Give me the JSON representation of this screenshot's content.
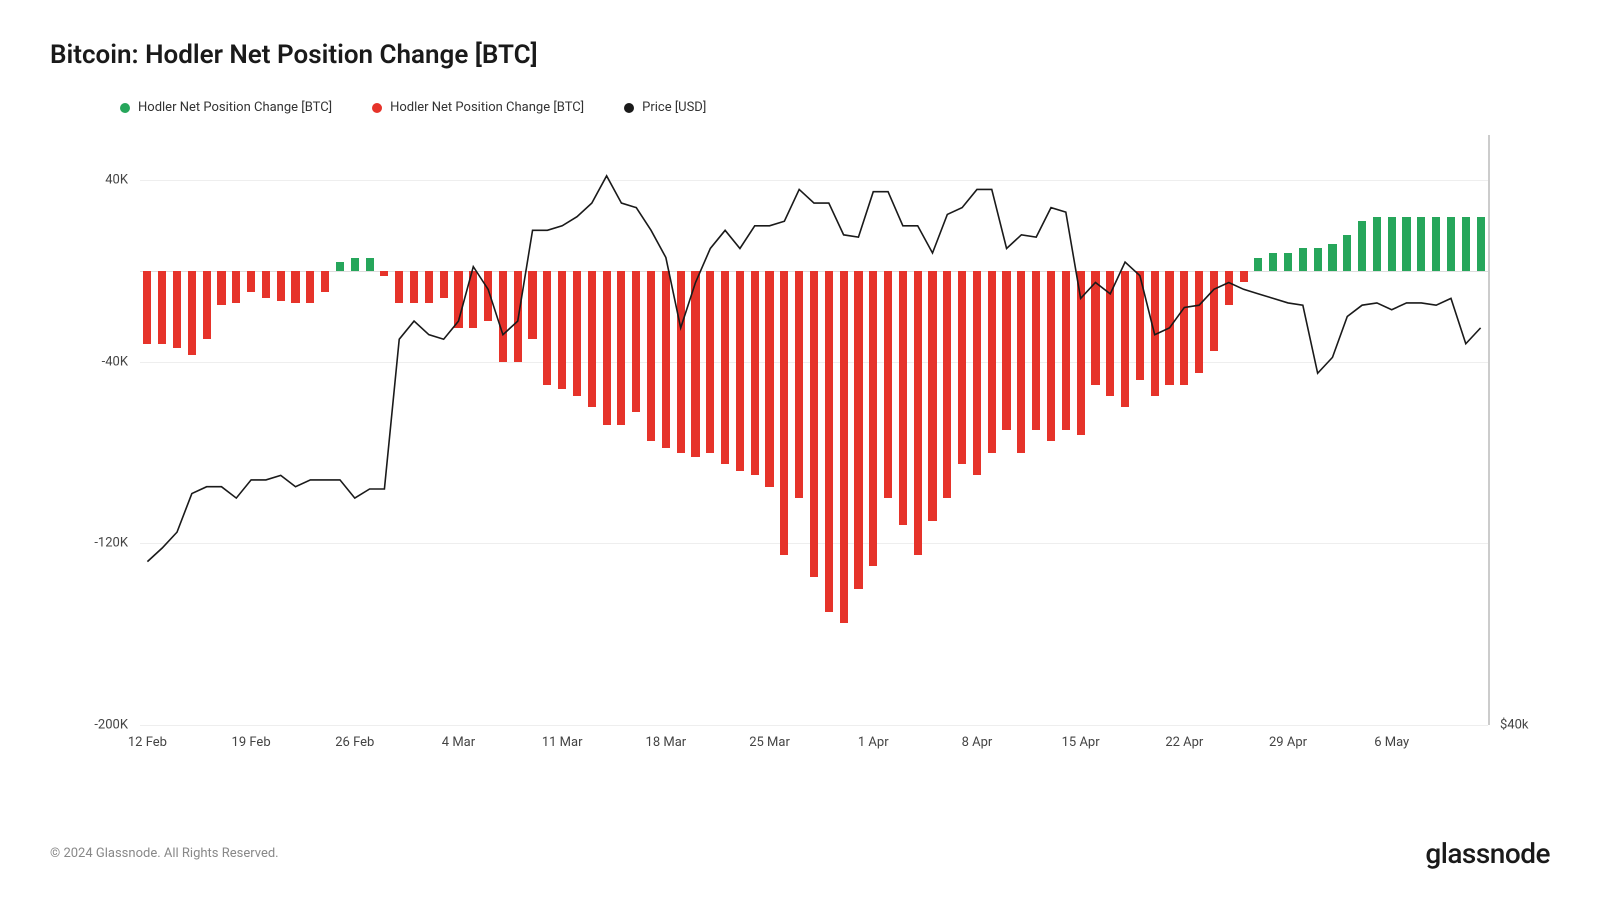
{
  "title": "Bitcoin: Hodler Net Position Change [BTC]",
  "legend": [
    {
      "label": "Hodler Net Position Change [BTC]",
      "color": "#26a65b"
    },
    {
      "label": "Hodler Net Position Change [BTC]",
      "color": "#e6332a"
    },
    {
      "label": "Price [USD]",
      "color": "#1a1a1a"
    }
  ],
  "copyright": "© 2024 Glassnode. All Rights Reserved.",
  "brand": "glassnode",
  "chart": {
    "type": "bar+line",
    "background_color": "#ffffff",
    "grid_color": "#eeeeee",
    "border_right_color": "#cccccc",
    "bar_width_ratio": 0.55,
    "y_left": {
      "min": -200000,
      "max": 60000,
      "ticks": [
        {
          "v": 40000,
          "label": "40K"
        },
        {
          "v": -40000,
          "label": "-40K"
        },
        {
          "v": -120000,
          "label": "-120K"
        },
        {
          "v": -200000,
          "label": "-200K"
        }
      ]
    },
    "y_right": {
      "ticks": [
        {
          "v": -200000,
          "label": "$40k"
        }
      ]
    },
    "x_ticks": [
      {
        "i": 0,
        "label": "12 Feb"
      },
      {
        "i": 7,
        "label": "19 Feb"
      },
      {
        "i": 14,
        "label": "26 Feb"
      },
      {
        "i": 21,
        "label": "4 Mar"
      },
      {
        "i": 28,
        "label": "11 Mar"
      },
      {
        "i": 35,
        "label": "18 Mar"
      },
      {
        "i": 42,
        "label": "25 Mar"
      },
      {
        "i": 49,
        "label": "1 Apr"
      },
      {
        "i": 56,
        "label": "8 Apr"
      },
      {
        "i": 63,
        "label": "15 Apr"
      },
      {
        "i": 70,
        "label": "22 Apr"
      },
      {
        "i": 77,
        "label": "29 Apr"
      },
      {
        "i": 84,
        "label": "6 May"
      }
    ],
    "bars": [
      -32000,
      -32000,
      -34000,
      -37000,
      -30000,
      -15000,
      -14000,
      -9000,
      -12000,
      -13000,
      -14000,
      -14000,
      -9000,
      4000,
      6000,
      6000,
      -2000,
      -14000,
      -14000,
      -14000,
      -12000,
      -25000,
      -25000,
      -22000,
      -40000,
      -40000,
      -30000,
      -50000,
      -52000,
      -55000,
      -60000,
      -68000,
      -68000,
      -62000,
      -75000,
      -78000,
      -80000,
      -82000,
      -80000,
      -85000,
      -88000,
      -90000,
      -95000,
      -125000,
      -100000,
      -135000,
      -150000,
      -155000,
      -140000,
      -130000,
      -100000,
      -112000,
      -125000,
      -110000,
      -100000,
      -85000,
      -90000,
      -80000,
      -70000,
      -80000,
      -70000,
      -75000,
      -70000,
      -72000,
      -50000,
      -55000,
      -60000,
      -48000,
      -55000,
      -50000,
      -50000,
      -45000,
      -35000,
      -15000,
      -5000,
      6000,
      8000,
      8000,
      10000,
      10000,
      12000,
      16000,
      22000,
      24000,
      24000,
      24000,
      24000,
      24000,
      24000,
      24000,
      24000
    ],
    "price": [
      -128000,
      -122000,
      -115000,
      -98000,
      -95000,
      -95000,
      -100000,
      -92000,
      -92000,
      -90000,
      -95000,
      -92000,
      -92000,
      -92000,
      -100000,
      -96000,
      -96000,
      -30000,
      -22000,
      -28000,
      -30000,
      -22000,
      2000,
      -8000,
      -28000,
      -22000,
      18000,
      18000,
      20000,
      24000,
      30000,
      42000,
      30000,
      28000,
      18000,
      6000,
      -25000,
      -5000,
      10000,
      18000,
      10000,
      20000,
      20000,
      22000,
      36000,
      30000,
      30000,
      16000,
      15000,
      35000,
      35000,
      20000,
      20000,
      8000,
      25000,
      28000,
      36000,
      36000,
      10000,
      16000,
      15000,
      28000,
      26000,
      -12000,
      -5000,
      -10000,
      4000,
      -2000,
      -28000,
      -25000,
      -16000,
      -15000,
      -8000,
      -5000,
      -8000,
      -10000,
      -12000,
      -14000,
      -15000,
      -45000,
      -38000,
      -20000,
      -15000,
      -14000,
      -17000,
      -14000,
      -14000,
      -15000,
      -12000,
      -32000,
      -25000
    ],
    "colors": {
      "pos": "#26a65b",
      "neg": "#e6332a",
      "line": "#1a1a1a"
    },
    "label_fontsize": 13,
    "title_fontsize": 26,
    "line_width": 1.6
  }
}
